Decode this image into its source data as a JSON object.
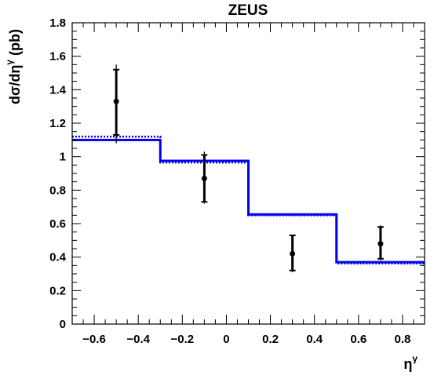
{
  "chart_data": {
    "type": "line",
    "title": "ZEUS",
    "xlabel": "ηγ",
    "xlabel_base": "η",
    "xlabel_sup": "γ",
    "ylabel": "dσ/dηγ (pb)",
    "ylabel_main": "dσ/dη",
    "ylabel_sup": "γ",
    "ylabel_unit": " (pb)",
    "xlim": [
      -0.7,
      0.9
    ],
    "ylim": [
      0,
      1.8
    ],
    "xticks": [
      -0.6,
      -0.4,
      -0.2,
      0,
      0.2,
      0.4,
      0.6,
      0.8
    ],
    "xtick_labels": [
      "−0.6",
      "−0.4",
      "−0.2",
      "0",
      "0.2",
      "0.4",
      "0.6",
      "0.8"
    ],
    "yticks": [
      0,
      0.2,
      0.4,
      0.6,
      0.8,
      1,
      1.2,
      1.4,
      1.6,
      1.8
    ],
    "ytick_labels": [
      "0",
      "0.2",
      "0.4",
      "0.6",
      "0.8",
      "1",
      "1.2",
      "1.4",
      "1.6",
      "1.8"
    ],
    "grid": false,
    "series": [
      {
        "style": "points-with-error-bars",
        "color": "#000000",
        "points": [
          {
            "x": -0.5,
            "y": 1.33,
            "stat_lo": 1.13,
            "stat_hi": 1.52,
            "tot_lo": 1.08,
            "tot_hi": 1.55
          },
          {
            "x": -0.1,
            "y": 0.87,
            "stat_lo": 0.73,
            "stat_hi": 1.01,
            "tot_lo": 0.72,
            "tot_hi": 1.03
          },
          {
            "x": 0.3,
            "y": 0.42,
            "stat_lo": 0.32,
            "stat_hi": 0.53,
            "tot_lo": 0.31,
            "tot_hi": 0.53
          },
          {
            "x": 0.7,
            "y": 0.48,
            "stat_lo": 0.39,
            "stat_hi": 0.58,
            "tot_lo": 0.38,
            "tot_hi": 0.59
          }
        ]
      },
      {
        "style": "step-solid",
        "color": "#0000ee",
        "bins": [
          {
            "x0": -0.7,
            "x1": -0.3,
            "y": 1.1
          },
          {
            "x0": -0.3,
            "x1": 0.1,
            "y": 0.975
          },
          {
            "x0": 0.1,
            "x1": 0.5,
            "y": 0.655
          },
          {
            "x0": 0.5,
            "x1": 0.9,
            "y": 0.37
          }
        ]
      },
      {
        "style": "step-dotted",
        "color": "#0000ee",
        "bins": [
          {
            "x0": -0.7,
            "x1": -0.3,
            "y": 1.12
          },
          {
            "x0": -0.3,
            "x1": 0.1,
            "y": 0.965
          },
          {
            "x0": 0.1,
            "x1": 0.5,
            "y": 0.65
          },
          {
            "x0": 0.5,
            "x1": 0.9,
            "y": 0.362
          }
        ]
      }
    ]
  }
}
